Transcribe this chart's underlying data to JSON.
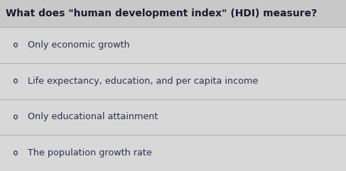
{
  "title": "What does \"human development index\" (HDI) measure?",
  "options": [
    "Only economic growth",
    "Life expectancy, education, and per capita income",
    "Only educational attainment",
    "The population growth rate"
  ],
  "title_bg_color": "#c8c8c8",
  "options_bg_color": "#d8d8d8",
  "title_color": "#1a1a2e",
  "option_color": "#2e3050",
  "title_fontsize": 10.0,
  "option_fontsize": 9.2,
  "circle_color": "#444455",
  "line_color": "#b0b0b0",
  "figsize": [
    4.87,
    2.41
  ],
  "dpi": 100
}
